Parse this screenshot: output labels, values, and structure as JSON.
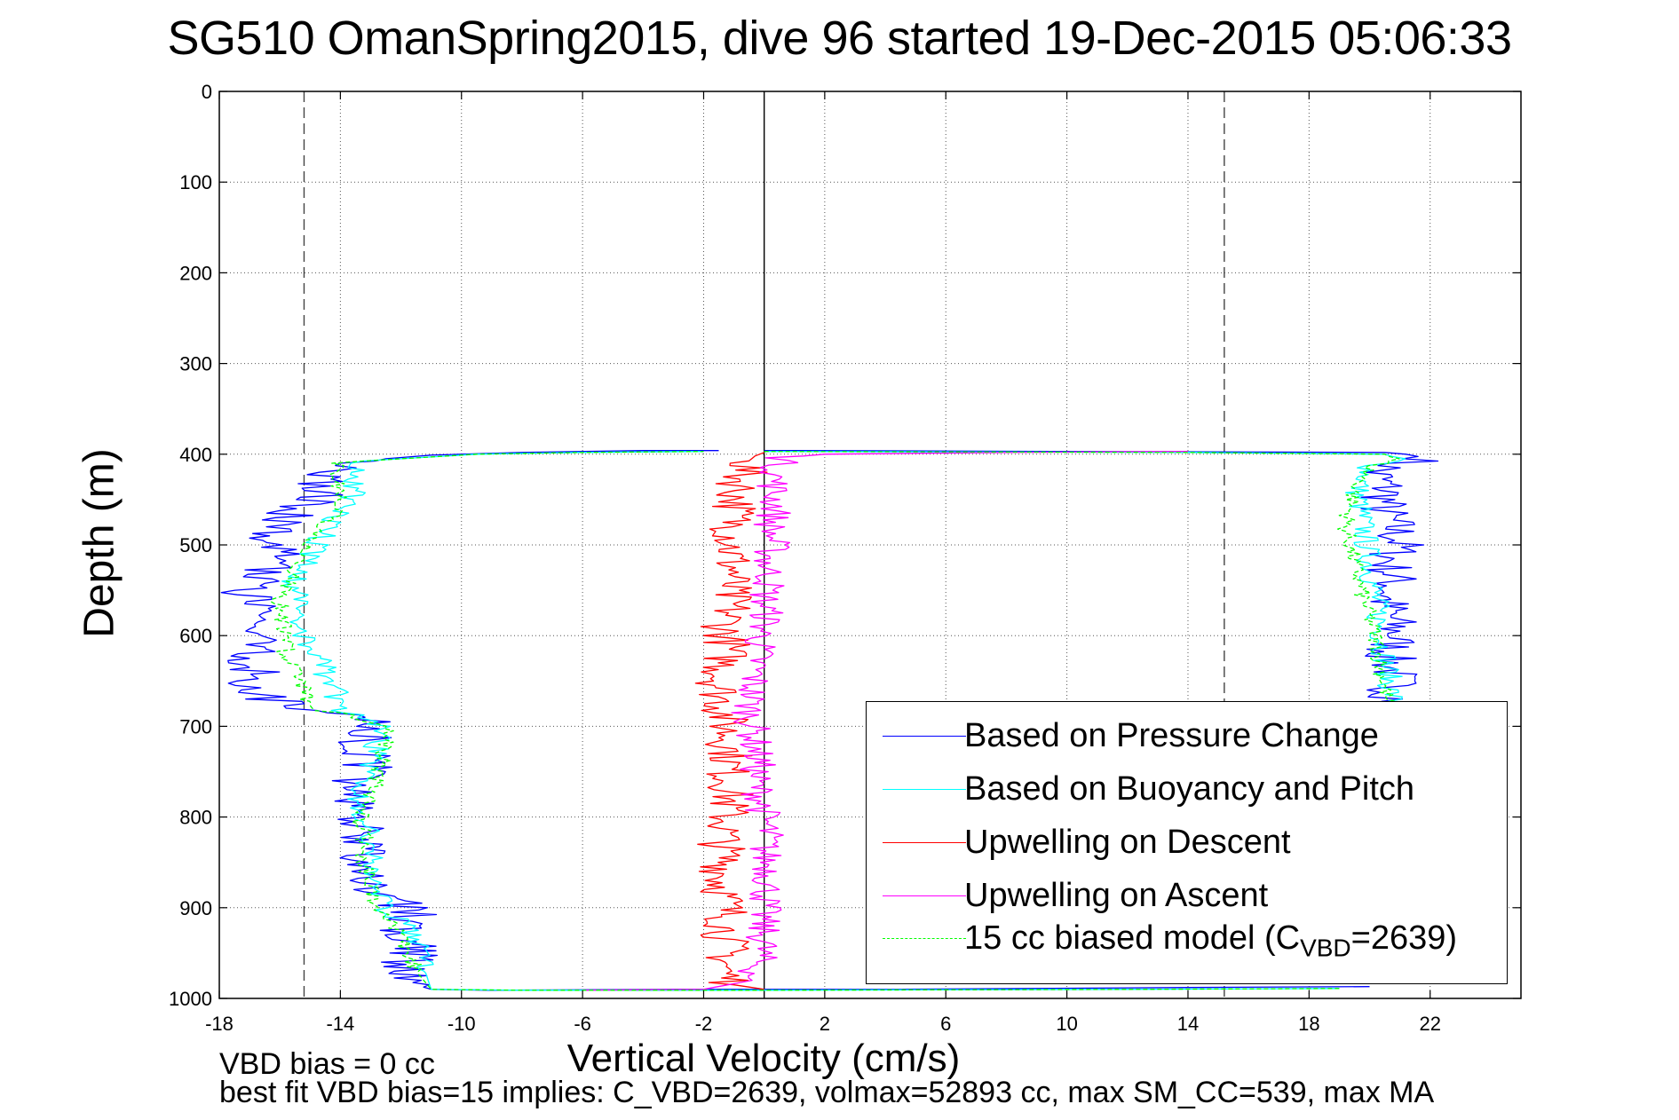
{
  "chart_data": {
    "type": "line",
    "title": "SG510 OmanSpring2015, dive 96 started 19-Dec-2015 05:06:33",
    "xlabel": "Vertical Velocity (cm/s)",
    "ylabel": "Depth (m)",
    "xlim": [
      -18,
      25
    ],
    "ylim": [
      0,
      1000
    ],
    "y_reversed": true,
    "grid": true,
    "legend_position": "bottom-right",
    "x_ticks": [
      "-18",
      "-14",
      "-10",
      "-6",
      "-2",
      "2",
      "6",
      "10",
      "14",
      "18",
      "22"
    ],
    "y_ticks": [
      "0",
      "100",
      "200",
      "300",
      "400",
      "500",
      "600",
      "700",
      "800",
      "900",
      "1000"
    ],
    "reference_lines": [
      {
        "x": -15.2,
        "style": "dashed"
      },
      {
        "x": 0,
        "style": "solid"
      },
      {
        "x": 15.2,
        "style": "dashed"
      }
    ],
    "series": [
      {
        "name": "Based on Pressure Change",
        "color": "#0000ff",
        "points": [
          [
            0.0,
            396
          ],
          [
            1.0,
            396
          ],
          [
            20.5,
            398
          ],
          [
            21.2,
            400
          ],
          [
            22.0,
            405
          ],
          [
            21.0,
            410
          ],
          [
            20.2,
            420
          ],
          [
            20.6,
            440
          ],
          [
            20.4,
            460
          ],
          [
            20.8,
            480
          ],
          [
            21.0,
            500
          ],
          [
            20.6,
            520
          ],
          [
            20.8,
            540
          ],
          [
            20.5,
            560
          ],
          [
            20.7,
            580
          ],
          [
            20.9,
            600
          ],
          [
            20.6,
            620
          ],
          [
            20.8,
            640
          ],
          [
            20.8,
            660
          ],
          [
            20.9,
            675
          ],
          null,
          [
            20.0,
            987
          ],
          [
            14.0,
            988
          ],
          [
            4.0,
            990
          ],
          [
            1.0,
            990
          ],
          [
            -3.0,
            990
          ],
          [
            -9.0,
            991
          ],
          [
            -11.0,
            990
          ],
          [
            -11.5,
            985
          ],
          [
            -12.0,
            970
          ],
          [
            -11.5,
            950
          ],
          [
            -12.0,
            930
          ],
          [
            -11.5,
            910
          ],
          [
            -12.0,
            895
          ],
          [
            -13.0,
            890
          ],
          [
            -13.2,
            870
          ],
          [
            -13.5,
            850
          ],
          [
            -13.3,
            820
          ],
          [
            -13.5,
            800
          ],
          [
            -13.3,
            780
          ],
          [
            -13.5,
            760
          ],
          [
            -13.0,
            740
          ],
          [
            -13.2,
            720
          ],
          [
            -13.0,
            700
          ],
          [
            -13.5,
            690
          ],
          [
            -15.0,
            680
          ],
          [
            -16.5,
            670
          ],
          [
            -17.0,
            650
          ],
          [
            -16.8,
            630
          ],
          [
            -17.0,
            610
          ],
          [
            -16.8,
            590
          ],
          [
            -17.0,
            570
          ],
          [
            -17.2,
            550
          ],
          [
            -16.5,
            530
          ],
          [
            -16.0,
            510
          ],
          [
            -16.5,
            490
          ],
          [
            -15.8,
            470
          ],
          [
            -15.0,
            455
          ],
          [
            -14.6,
            440
          ],
          [
            -14.4,
            420
          ],
          [
            -14.2,
            410
          ],
          [
            -12.5,
            405
          ],
          [
            -11.0,
            401
          ],
          [
            -8.0,
            398
          ],
          [
            -4.0,
            396
          ],
          [
            -1.5,
            396
          ]
        ]
      },
      {
        "name": "Based on Buoyancy and Pitch",
        "color": "#00ffff",
        "points": [
          [
            0.0,
            397
          ],
          [
            14.0,
            398
          ],
          [
            20.5,
            400
          ],
          [
            21.0,
            405
          ],
          [
            20.0,
            415
          ],
          [
            19.6,
            440
          ],
          [
            19.8,
            480
          ],
          [
            20.0,
            520
          ],
          [
            20.2,
            560
          ],
          [
            20.4,
            600
          ],
          [
            20.6,
            640
          ],
          [
            20.8,
            675
          ],
          null,
          [
            19.0,
            989
          ],
          [
            12.0,
            990
          ],
          [
            0.0,
            991
          ],
          [
            -8.0,
            991
          ],
          [
            -11.0,
            990
          ],
          [
            -11.2,
            970
          ],
          [
            -11.4,
            950
          ],
          [
            -11.8,
            920
          ],
          [
            -12.5,
            900
          ],
          [
            -12.8,
            880
          ],
          [
            -13.0,
            860
          ],
          [
            -13.0,
            840
          ],
          [
            -13.0,
            820
          ],
          [
            -13.2,
            800
          ],
          [
            -13.4,
            780
          ],
          [
            -13.2,
            760
          ],
          [
            -13.0,
            740
          ],
          [
            -12.8,
            720
          ],
          [
            -12.6,
            700
          ],
          [
            -13.5,
            690
          ],
          [
            -14.0,
            680
          ],
          [
            -14.2,
            660
          ],
          [
            -14.5,
            640
          ],
          [
            -14.8,
            620
          ],
          [
            -15.2,
            600
          ],
          [
            -15.3,
            580
          ],
          [
            -15.5,
            560
          ],
          [
            -15.5,
            540
          ],
          [
            -15.0,
            520
          ],
          [
            -14.8,
            500
          ],
          [
            -14.4,
            480
          ],
          [
            -13.8,
            460
          ],
          [
            -13.6,
            440
          ],
          [
            -13.6,
            420
          ],
          [
            -13.8,
            410
          ],
          [
            -12.0,
            405
          ],
          [
            -9.5,
            400
          ],
          [
            -6.0,
            398
          ],
          [
            -2.0,
            397
          ]
        ]
      },
      {
        "name": "Upwelling on Descent",
        "color": "#ff0000",
        "points": [
          [
            0.0,
            398
          ],
          [
            -0.3,
            402
          ],
          [
            -0.6,
            410
          ],
          [
            -0.8,
            430
          ],
          [
            -0.9,
            450
          ],
          [
            -1.0,
            470
          ],
          [
            -1.0,
            490
          ],
          [
            -1.1,
            510
          ],
          [
            -1.0,
            530
          ],
          [
            -1.2,
            550
          ],
          [
            -1.1,
            570
          ],
          [
            -1.3,
            590
          ],
          [
            -1.2,
            610
          ],
          [
            -1.3,
            630
          ],
          [
            -1.5,
            650
          ],
          [
            -1.4,
            670
          ],
          [
            -1.3,
            690
          ],
          [
            -1.2,
            710
          ],
          [
            -1.1,
            730
          ],
          [
            -1.2,
            750
          ],
          [
            -1.1,
            770
          ],
          [
            -1.2,
            790
          ],
          [
            -1.3,
            810
          ],
          [
            -1.4,
            830
          ],
          [
            -1.3,
            850
          ],
          [
            -1.4,
            870
          ],
          [
            -1.3,
            890
          ],
          [
            -1.2,
            910
          ],
          [
            -1.3,
            930
          ],
          [
            -1.2,
            950
          ],
          [
            -1.3,
            970
          ],
          [
            -1.0,
            985
          ],
          [
            0.0,
            990
          ]
        ]
      },
      {
        "name": "Upwelling on Ascent",
        "color": "#ff00ff",
        "points": [
          [
            14.0,
            397
          ],
          [
            8.0,
            398
          ],
          [
            2.0,
            400
          ],
          [
            0.6,
            404
          ],
          [
            0.4,
            420
          ],
          [
            0.3,
            440
          ],
          [
            0.4,
            460
          ],
          [
            0.2,
            480
          ],
          [
            0.3,
            500
          ],
          [
            0.1,
            520
          ],
          [
            0.2,
            540
          ],
          [
            0.0,
            560
          ],
          [
            0.1,
            580
          ],
          [
            -0.1,
            600
          ],
          [
            -0.2,
            620
          ],
          [
            -0.3,
            640
          ],
          [
            -0.4,
            660
          ],
          [
            -0.5,
            680
          ],
          [
            -0.4,
            700
          ],
          [
            -0.3,
            720
          ],
          [
            -0.2,
            740
          ],
          [
            -0.3,
            760
          ],
          [
            -0.1,
            780
          ],
          [
            0.0,
            800
          ],
          [
            0.1,
            820
          ],
          [
            0.0,
            840
          ],
          [
            0.2,
            860
          ],
          [
            0.1,
            880
          ],
          [
            0.0,
            900
          ],
          [
            -0.1,
            920
          ],
          [
            0.0,
            940
          ],
          [
            -0.2,
            960
          ],
          [
            -0.4,
            980
          ],
          [
            -2.0,
            990
          ],
          [
            -6.0,
            991
          ]
        ]
      },
      {
        "name": "15 cc biased model (C",
        "name_sub": "VBD",
        "name_tail": "=2639)",
        "color": "#00ff00",
        "dashed": true,
        "points": [
          [
            0.0,
            397
          ],
          [
            14.0,
            398
          ],
          [
            20.5,
            400
          ],
          [
            20.8,
            405
          ],
          [
            20.0,
            415
          ],
          [
            19.5,
            440
          ],
          [
            19.2,
            480
          ],
          [
            19.5,
            520
          ],
          [
            19.8,
            560
          ],
          [
            20.2,
            600
          ],
          [
            20.4,
            640
          ],
          [
            20.6,
            675
          ],
          null,
          [
            19.0,
            989
          ],
          [
            12.0,
            990
          ],
          [
            0.0,
            991
          ],
          [
            -8.0,
            991
          ],
          [
            -11.0,
            990
          ],
          [
            -11.5,
            970
          ],
          [
            -11.8,
            950
          ],
          [
            -12.0,
            930
          ],
          [
            -12.5,
            910
          ],
          [
            -13.0,
            895
          ],
          [
            -13.0,
            870
          ],
          [
            -13.2,
            850
          ],
          [
            -13.2,
            820
          ],
          [
            -13.4,
            800
          ],
          [
            -13.0,
            780
          ],
          [
            -12.8,
            760
          ],
          [
            -12.6,
            740
          ],
          [
            -12.5,
            720
          ],
          [
            -12.4,
            700
          ],
          [
            -13.8,
            688
          ],
          [
            -15.0,
            680
          ],
          [
            -15.2,
            660
          ],
          [
            -15.5,
            640
          ],
          [
            -15.8,
            620
          ],
          [
            -15.8,
            600
          ],
          [
            -16.0,
            580
          ],
          [
            -16.0,
            560
          ],
          [
            -15.6,
            540
          ],
          [
            -15.4,
            520
          ],
          [
            -15.0,
            500
          ],
          [
            -14.6,
            480
          ],
          [
            -14.0,
            460
          ],
          [
            -14.0,
            440
          ],
          [
            -14.2,
            420
          ],
          [
            -14.0,
            410
          ],
          [
            -12.0,
            405
          ],
          [
            -9.5,
            400
          ],
          [
            -6.0,
            398
          ],
          [
            -2.0,
            397
          ]
        ]
      }
    ]
  },
  "footer": {
    "vbd_bias": "VBD bias = 0 cc",
    "best_fit": "best fit VBD bias=15 implies: C_VBD=2639, volmax=52893 cc, max SM_CC=539, max MA"
  }
}
